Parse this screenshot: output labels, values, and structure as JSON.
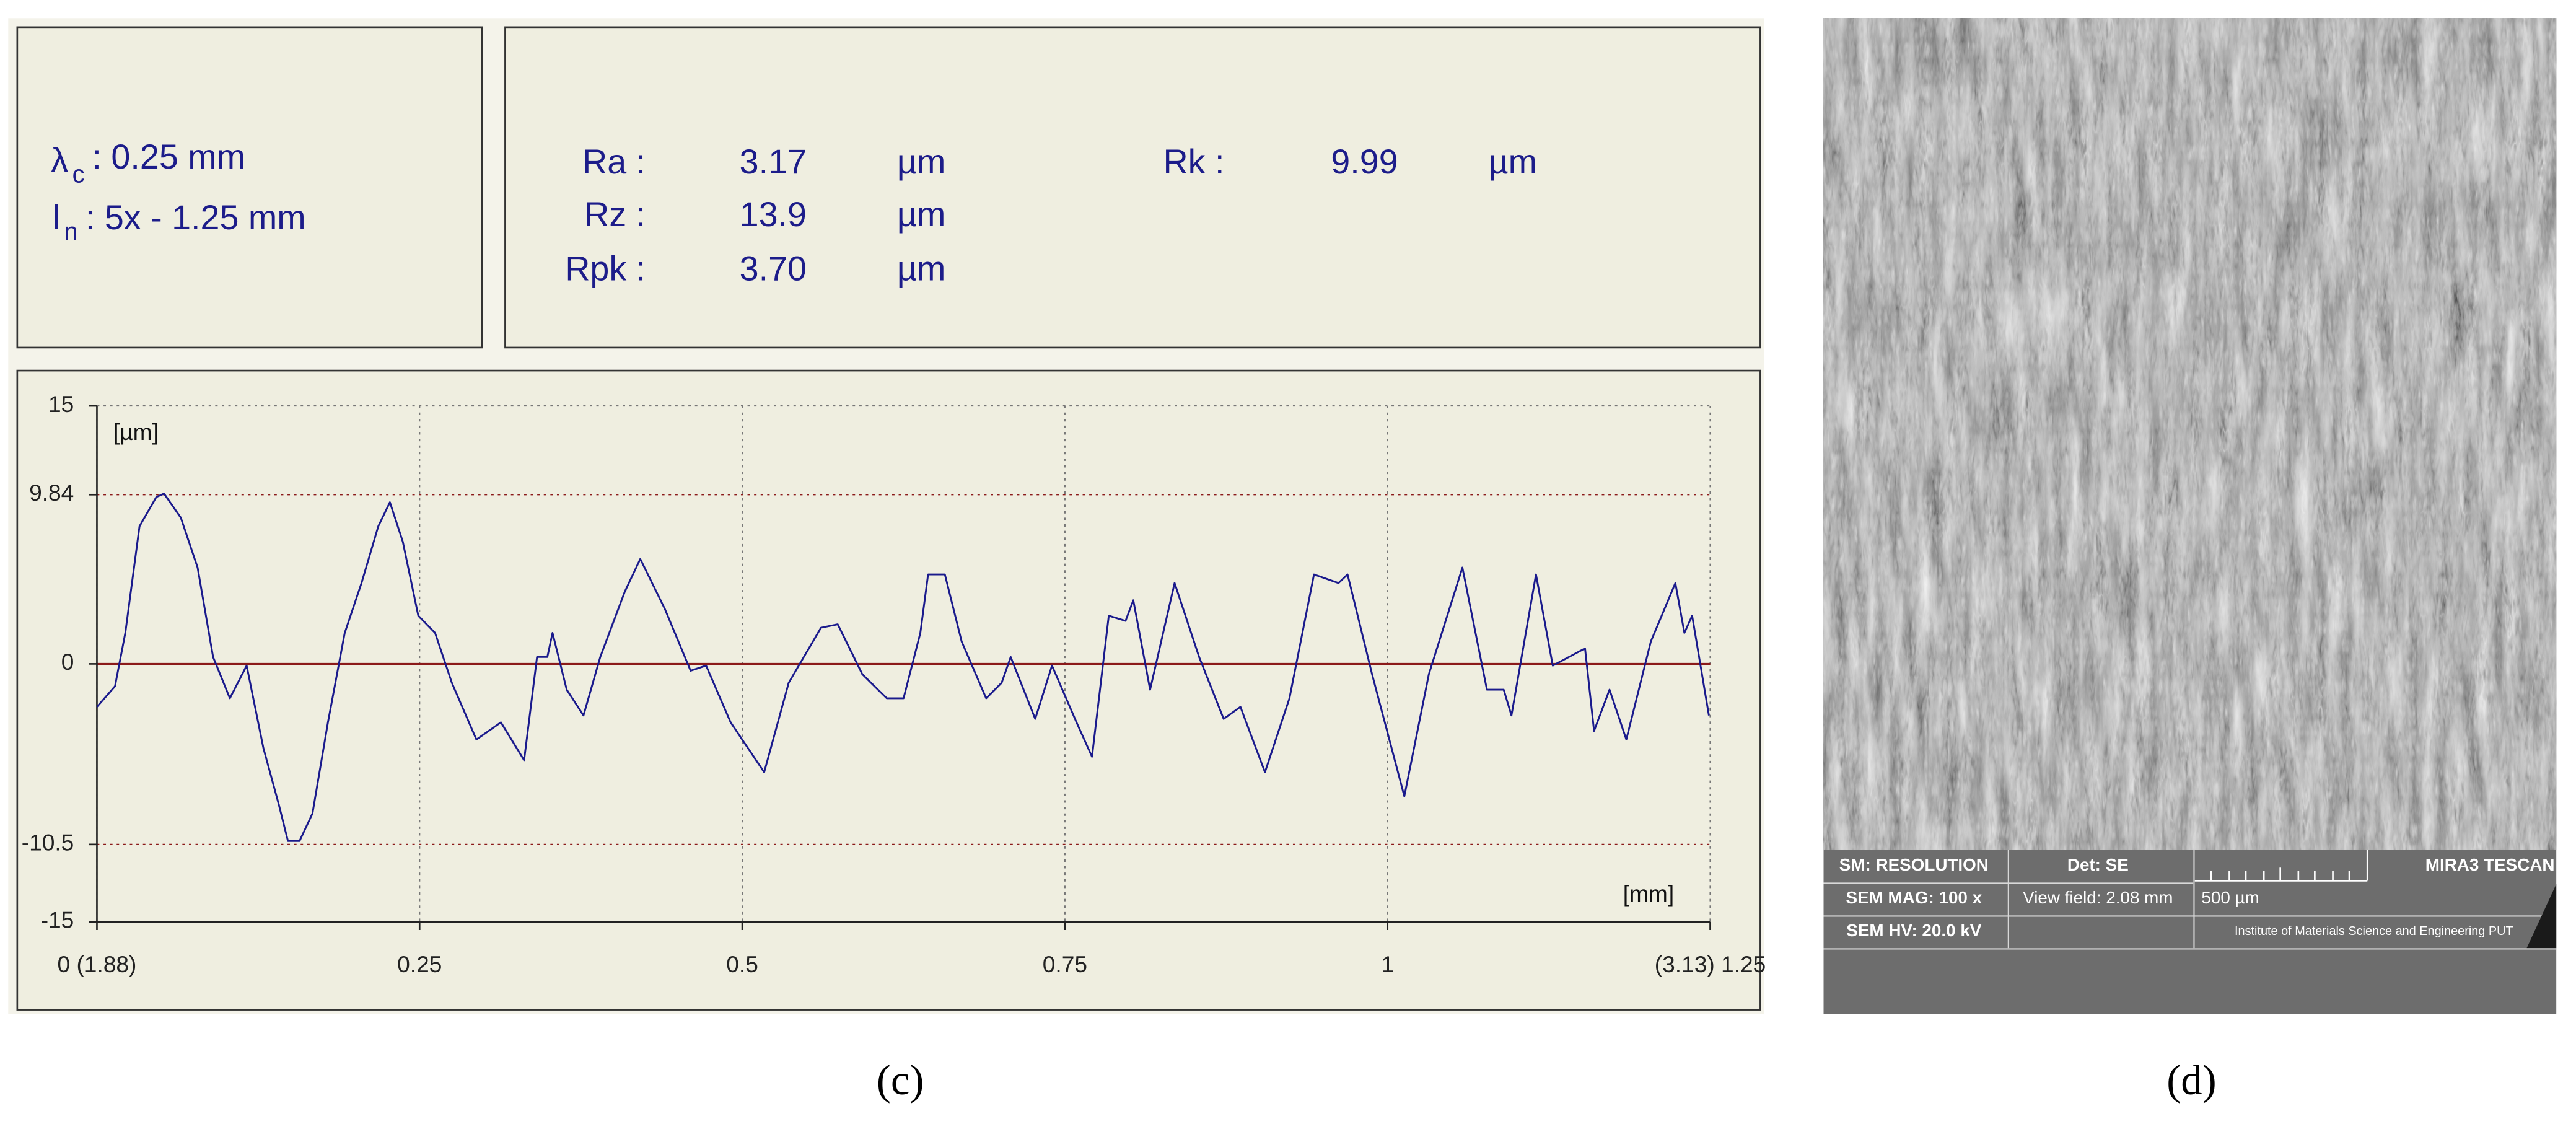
{
  "parameters": {
    "cutoff": {
      "symbol": "λ",
      "subscript": "c",
      "value": ": 0.25 mm"
    },
    "length": {
      "symbol": "l",
      "subscript": "n",
      "value": ": 5x - 1.25 mm"
    }
  },
  "roughness": {
    "rows": [
      [
        "Ra :",
        "3.17",
        "µm"
      ],
      [
        "Rz :",
        "13.9",
        "µm"
      ],
      [
        "Rpk :",
        "3.70",
        "µm"
      ]
    ],
    "side_rows": [
      [
        "Rk :",
        "9.99",
        "µm"
      ]
    ]
  },
  "chart_data": {
    "type": "line",
    "y_unit": "[µm]",
    "x_unit": "[mm]",
    "x": [
      0,
      0.014,
      0.022,
      0.033,
      0.046,
      0.052,
      0.065,
      0.078,
      0.09,
      0.103,
      0.116,
      0.129,
      0.141,
      0.148,
      0.157,
      0.167,
      0.179,
      0.192,
      0.205,
      0.218,
      0.227,
      0.237,
      0.249,
      0.262,
      0.275,
      0.294,
      0.313,
      0.331,
      0.341,
      0.349,
      0.353,
      0.364,
      0.377,
      0.39,
      0.409,
      0.421,
      0.44,
      0.46,
      0.472,
      0.491,
      0.517,
      0.536,
      0.561,
      0.574,
      0.593,
      0.612,
      0.625,
      0.638,
      0.644,
      0.657,
      0.67,
      0.689,
      0.701,
      0.708,
      0.727,
      0.74,
      0.759,
      0.771,
      0.784,
      0.797,
      0.803,
      0.816,
      0.835,
      0.854,
      0.873,
      0.886,
      0.905,
      0.924,
      0.943,
      0.962,
      0.969,
      0.988,
      1.013,
      1.032,
      1.058,
      1.077,
      1.09,
      1.096,
      1.115,
      1.128,
      1.153,
      1.16,
      1.172,
      1.185,
      1.204,
      1.223,
      1.23,
      1.236,
      1.249
    ],
    "series": [
      {
        "color": "#1a1a8c",
        "values": [
          -2.5,
          -1.3,
          1.8,
          8.0,
          9.7,
          9.9,
          8.5,
          5.6,
          0.4,
          -2.0,
          -0.1,
          -4.9,
          -8.2,
          -10.3,
          -10.3,
          -8.7,
          -3.4,
          1.8,
          4.7,
          8.0,
          9.4,
          7.1,
          2.8,
          1.8,
          -1.1,
          -4.4,
          -3.4,
          -5.6,
          0.4,
          0.4,
          1.8,
          -1.5,
          -3.0,
          0.4,
          4.2,
          6.1,
          3.2,
          -0.4,
          -0.1,
          -3.4,
          -6.3,
          -1.1,
          2.1,
          2.3,
          -0.6,
          -2.0,
          -2.0,
          1.8,
          5.2,
          5.2,
          1.3,
          -2.0,
          -1.1,
          0.4,
          -3.2,
          -0.1,
          -3.4,
          -5.4,
          2.8,
          2.5,
          3.7,
          -1.5,
          4.7,
          0.4,
          -3.2,
          -2.5,
          -6.3,
          -2.0,
          5.2,
          4.7,
          5.2,
          -0.6,
          -7.7,
          -0.6,
          5.6,
          -1.5,
          -1.5,
          -3.0,
          5.2,
          -0.1,
          0.9,
          -3.9,
          -1.5,
          -4.4,
          1.3,
          4.7,
          1.8,
          2.8,
          -3.0
        ]
      }
    ],
    "xlim": [
      0,
      1.25
    ],
    "ylim": [
      -15,
      15
    ],
    "xticks": [
      {
        "value": 0,
        "label": "0 (1.88)"
      },
      0.25,
      0.5,
      0.75,
      1,
      {
        "value": 1.25,
        "label": "(3.13) 1.25"
      }
    ],
    "yticks": [
      15,
      9.84,
      0,
      -10.5,
      -15
    ],
    "grid": true,
    "axis_color": "#222222",
    "level_color": "#8b1a1a",
    "grid_color": "#777777"
  },
  "sem": {
    "mode": "SM: RESOLUTION",
    "detector": "Det: SE",
    "brand": "MIRA3 TESCAN",
    "magnification": "SEM MAG: 100 x",
    "view_field": "View field: 2.08 mm",
    "scale": "500 µm",
    "voltage": "SEM HV: 20.0 kV",
    "institute": "Institute of Materials Science and Engineering  PUT"
  },
  "captions": [
    "(c)",
    "(d)"
  ]
}
